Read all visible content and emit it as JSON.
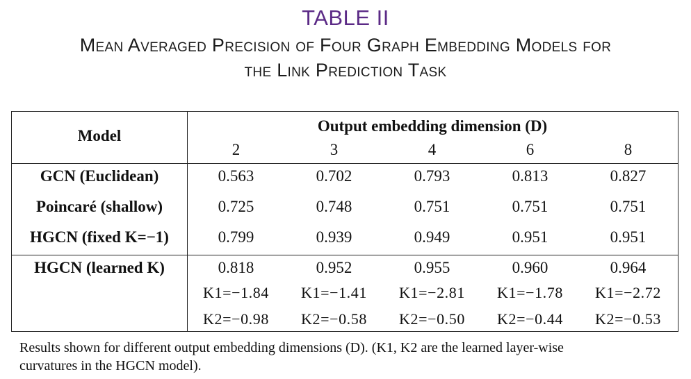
{
  "table_label": "TABLE II",
  "caption": {
    "line1": "Mean Averaged Precision of Four Graph Embedding Models for",
    "line2": "the Link Prediction Task"
  },
  "header": {
    "model": "Model",
    "group": "Output embedding dimension (D)",
    "dims": [
      "2",
      "3",
      "4",
      "6",
      "8"
    ]
  },
  "rows": [
    {
      "model": "GCN (Euclidean)",
      "values": [
        "0.563",
        "0.702",
        "0.793",
        "0.813",
        "0.827"
      ]
    },
    {
      "model": "Poincaré (shallow)",
      "values": [
        "0.725",
        "0.748",
        "0.751",
        "0.751",
        "0.751"
      ]
    },
    {
      "model": "HGCN (fixed K=−1)",
      "values": [
        "0.799",
        "0.939",
        "0.949",
        "0.951",
        "0.951"
      ]
    },
    {
      "model": "HGCN (learned K)",
      "values": [
        "0.818",
        "0.952",
        "0.955",
        "0.960",
        "0.964"
      ],
      "k1": [
        "K1=−1.84",
        "K1=−1.41",
        "K1=−2.81",
        "K1=−1.78",
        "K1=−2.72"
      ],
      "k2": [
        "K2=−0.98",
        "K2=−0.58",
        "K2=−0.50",
        "K2=−0.44",
        "K2=−0.53"
      ]
    }
  ],
  "footnote": {
    "line1": "Results shown for different output embedding dimensions (D). (K1, K2 are the learned layer-wise",
    "line2": "curvatures in the HGCN model)."
  }
}
